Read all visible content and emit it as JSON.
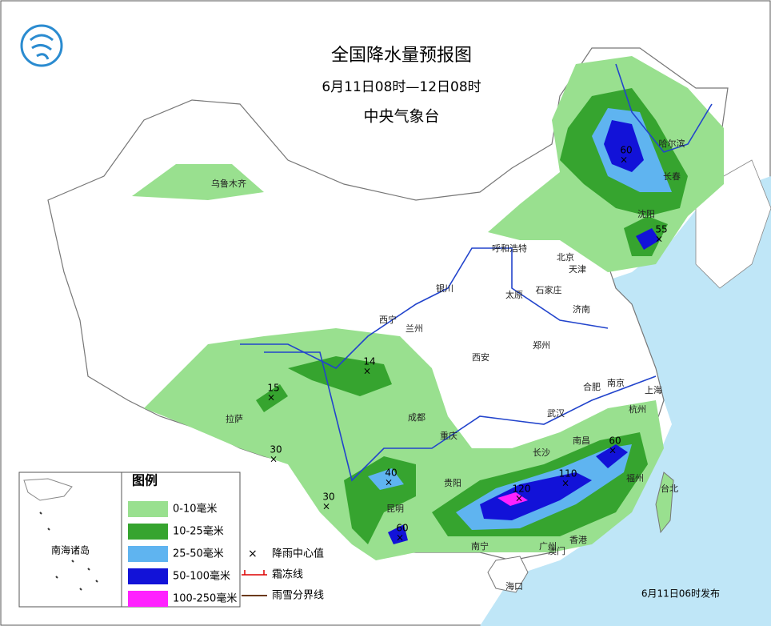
{
  "title": "全国降水量预报图",
  "subtitle": "6月11日08时—12日08时",
  "agency": "中央气象台",
  "cities": [
    "乌鲁木齐",
    "哈尔滨",
    "长春",
    "沈阳",
    "呼和浩特",
    "北京",
    "天津",
    "石家庄",
    "太原",
    "济南",
    "银川",
    "西宁",
    "兰州",
    "西安",
    "郑州",
    "合肥",
    "南京",
    "上海",
    "杭州",
    "武汉",
    "成都",
    "重庆",
    "拉萨",
    "长沙",
    "南昌",
    "福州",
    "台北",
    "贵阳",
    "昆明",
    "南宁",
    "广州",
    "香港",
    "澳门",
    "海口"
  ],
  "rain_centers": [
    60,
    55,
    14,
    15,
    30,
    40,
    30,
    60,
    120,
    110,
    60
  ],
  "legend": {
    "title": "图例",
    "items": [
      "0-10毫米",
      "10-25毫米",
      "25-50毫米",
      "50-100毫米",
      "100-250毫米"
    ],
    "symbols": [
      "降雨中心值",
      "霜冻线",
      "雨雪分界线"
    ]
  },
  "inset": "南海诸岛",
  "issued": "6月11日06时发布"
}
